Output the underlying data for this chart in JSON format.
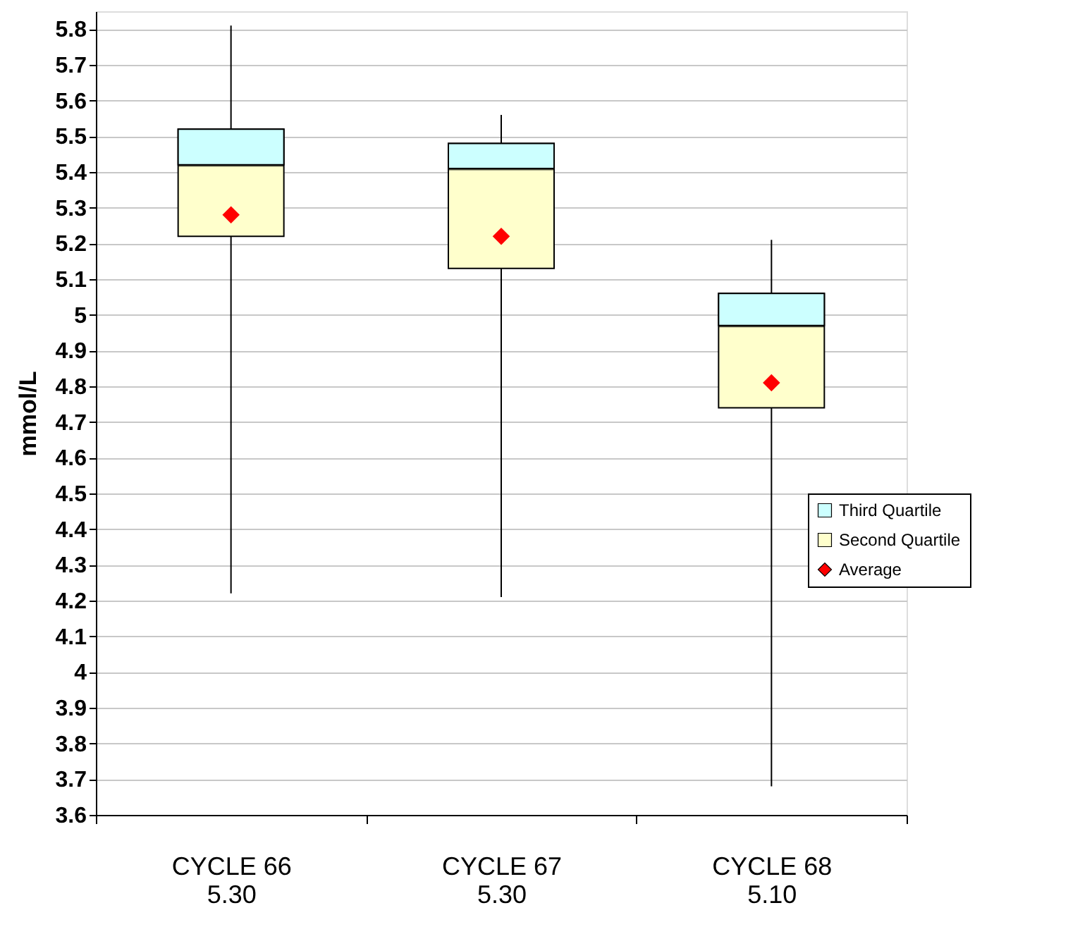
{
  "chart_data": {
    "type": "bar",
    "categories": [
      "CYCLE 66\n5.30",
      "CYCLE 67\n5.30",
      "CYCLE 68\n5.10"
    ],
    "series": [
      {
        "name": "Third Quartile",
        "color": "#ccffff",
        "base": [
          5.42,
          5.41,
          4.97
        ],
        "values": [
          0.1,
          0.07,
          0.09
        ]
      },
      {
        "name": "Second Quartile",
        "color": "#ffffcc",
        "type": "box",
        "boxes": [
          {
            "low": 4.22,
            "q1": 5.22,
            "median": 5.42,
            "q3": 5.52,
            "high": 5.81
          },
          {
            "low": 4.21,
            "q1": 5.13,
            "median": 5.41,
            "q3": 5.48,
            "high": 5.56
          },
          {
            "low": 3.68,
            "q1": 4.74,
            "median": 4.97,
            "q3": 5.06,
            "high": 5.21
          }
        ]
      },
      {
        "name": "Average",
        "color": "#ff0000",
        "type": "scatter",
        "marker": "diamond",
        "values": [
          5.28,
          5.22,
          4.81
        ]
      }
    ],
    "ylabel": "mmol/L",
    "ylim": [
      3.6,
      5.85
    ],
    "yticks": [
      3.6,
      3.7,
      3.8,
      3.9,
      4,
      4.1,
      4.2,
      4.3,
      4.4,
      4.5,
      4.6,
      4.7,
      4.8,
      4.9,
      5,
      5.1,
      5.2,
      5.3,
      5.4,
      5.5,
      5.6,
      5.7,
      5.8
    ],
    "grid": "y",
    "legend": "right"
  }
}
